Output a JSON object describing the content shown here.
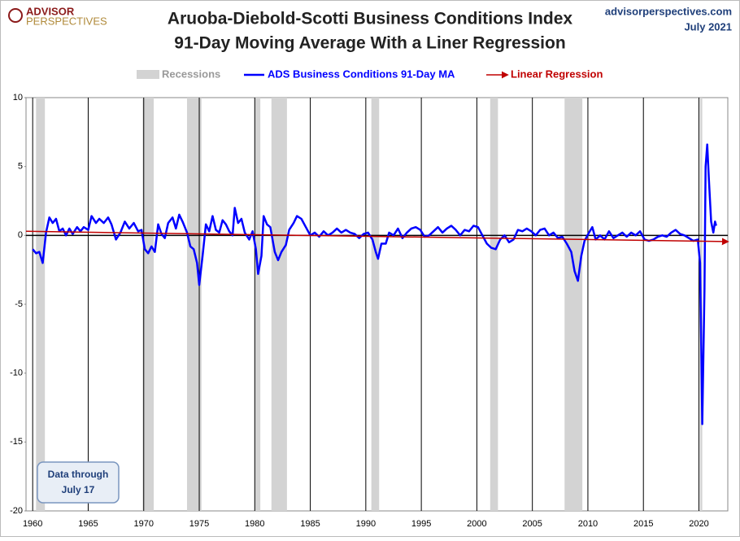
{
  "chart_data": {
    "type": "line",
    "title": [
      "Aruoba-Diebold-Scotti Business Conditions Index",
      "91-Day Moving Average With a Liner Regression"
    ],
    "source": "advisorperspectives.com",
    "date": "July 2021",
    "logo": [
      "ADVISOR",
      "PERSPECTIVES"
    ],
    "annotation": [
      "Data through",
      "July 17"
    ],
    "xlim": [
      1959.4,
      2022.6
    ],
    "xticks": [
      1960,
      1965,
      1970,
      1975,
      1980,
      1985,
      1990,
      1995,
      2000,
      2005,
      2010,
      2015,
      2020
    ],
    "ylim": [
      -20,
      10
    ],
    "yticks": [
      -20,
      -15,
      -10,
      -5,
      0,
      5,
      10
    ],
    "grid": true,
    "recessions": {
      "name": "Recessions",
      "color": "#d3d3d3",
      "spans": [
        [
          1960.3,
          1961.1
        ],
        [
          1969.9,
          1970.9
        ],
        [
          1973.9,
          1975.2
        ],
        [
          1980.0,
          1980.5
        ],
        [
          1981.5,
          1982.9
        ],
        [
          1990.5,
          1991.2
        ],
        [
          2001.2,
          2001.9
        ],
        [
          2007.9,
          2009.5
        ],
        [
          2020.1,
          2020.3
        ]
      ]
    },
    "series": [
      {
        "name": "ADS Business Conditions 91-Day MA",
        "color": "#0000ff",
        "x": [
          1960.0,
          1960.3,
          1960.6,
          1960.9,
          1961.2,
          1961.5,
          1961.8,
          1962.1,
          1962.4,
          1962.7,
          1963.0,
          1963.3,
          1963.6,
          1964.0,
          1964.3,
          1964.6,
          1965.0,
          1965.3,
          1965.7,
          1966.0,
          1966.4,
          1966.8,
          1967.1,
          1967.5,
          1967.9,
          1968.3,
          1968.7,
          1969.1,
          1969.5,
          1969.8,
          1970.1,
          1970.4,
          1970.7,
          1971.0,
          1971.3,
          1971.6,
          1971.9,
          1972.2,
          1972.6,
          1972.9,
          1973.2,
          1973.5,
          1973.9,
          1974.2,
          1974.5,
          1974.8,
          1975.0,
          1975.3,
          1975.6,
          1975.9,
          1976.2,
          1976.5,
          1976.8,
          1977.1,
          1977.4,
          1977.7,
          1978.0,
          1978.2,
          1978.5,
          1978.8,
          1979.1,
          1979.5,
          1979.8,
          1980.1,
          1980.3,
          1980.6,
          1980.8,
          1981.1,
          1981.4,
          1981.8,
          1982.1,
          1982.4,
          1982.8,
          1983.1,
          1983.5,
          1983.8,
          1984.2,
          1984.6,
          1985.0,
          1985.4,
          1985.8,
          1986.2,
          1986.6,
          1987.0,
          1987.4,
          1987.8,
          1988.2,
          1988.6,
          1989.0,
          1989.4,
          1989.8,
          1990.2,
          1990.6,
          1990.9,
          1991.1,
          1991.4,
          1991.8,
          1992.1,
          1992.5,
          1992.9,
          1993.3,
          1993.7,
          1994.1,
          1994.5,
          1994.9,
          1995.3,
          1995.7,
          1996.1,
          1996.5,
          1996.9,
          1997.3,
          1997.7,
          1998.1,
          1998.5,
          1998.9,
          1999.3,
          1999.7,
          2000.1,
          2000.5,
          2000.9,
          2001.3,
          2001.7,
          2002.1,
          2002.5,
          2002.9,
          2003.3,
          2003.7,
          2004.1,
          2004.5,
          2004.9,
          2005.3,
          2005.7,
          2006.1,
          2006.5,
          2006.9,
          2007.3,
          2007.7,
          2008.1,
          2008.5,
          2008.8,
          2009.1,
          2009.4,
          2009.7,
          2010.1,
          2010.4,
          2010.7,
          2011.1,
          2011.5,
          2011.9,
          2012.3,
          2012.7,
          2013.1,
          2013.5,
          2013.9,
          2014.3,
          2014.7,
          2015.1,
          2015.5,
          2015.9,
          2016.3,
          2016.7,
          2017.1,
          2017.5,
          2017.9,
          2018.3,
          2018.7,
          2019.1,
          2019.5,
          2019.9,
          2020.1,
          2020.3,
          2020.5,
          2020.6,
          2020.75,
          2020.9,
          2021.1,
          2021.3,
          2021.45,
          2021.55
        ],
        "values": [
          -1.0,
          -1.3,
          -1.2,
          -2.0,
          0.2,
          1.3,
          0.9,
          1.2,
          0.3,
          0.5,
          0.0,
          0.5,
          0.1,
          0.6,
          0.3,
          0.6,
          0.4,
          1.4,
          0.9,
          1.2,
          0.9,
          1.3,
          0.8,
          -0.3,
          0.2,
          1.0,
          0.5,
          0.9,
          0.3,
          0.4,
          -1.0,
          -1.3,
          -0.8,
          -1.2,
          0.8,
          0.1,
          -0.2,
          0.9,
          1.3,
          0.5,
          1.5,
          1.0,
          0.2,
          -0.8,
          -1.0,
          -2.0,
          -3.6,
          -1.5,
          0.8,
          0.3,
          1.4,
          0.4,
          0.2,
          1.1,
          0.8,
          0.3,
          0.0,
          2.0,
          0.9,
          1.2,
          0.2,
          -0.3,
          0.3,
          -1.0,
          -2.8,
          -1.5,
          1.4,
          0.8,
          0.6,
          -1.2,
          -1.8,
          -1.2,
          -0.7,
          0.4,
          0.9,
          1.4,
          1.2,
          0.6,
          0.0,
          0.2,
          -0.1,
          0.3,
          0.0,
          0.2,
          0.5,
          0.2,
          0.4,
          0.2,
          0.1,
          -0.2,
          0.1,
          0.2,
          -0.3,
          -1.2,
          -1.7,
          -0.6,
          -0.6,
          0.2,
          0.0,
          0.5,
          -0.2,
          0.2,
          0.5,
          0.6,
          0.4,
          -0.1,
          0.0,
          0.3,
          0.6,
          0.2,
          0.5,
          0.7,
          0.4,
          0.0,
          0.4,
          0.3,
          0.7,
          0.6,
          0.0,
          -0.6,
          -0.9,
          -1.0,
          -0.3,
          0.0,
          -0.5,
          -0.3,
          0.4,
          0.3,
          0.5,
          0.3,
          0.0,
          0.4,
          0.5,
          0.0,
          0.2,
          -0.2,
          -0.1,
          -0.6,
          -1.2,
          -2.6,
          -3.3,
          -1.5,
          -0.4,
          0.2,
          0.6,
          -0.3,
          0.0,
          -0.3,
          0.3,
          -0.2,
          0.0,
          0.2,
          -0.1,
          0.2,
          0.0,
          0.3,
          -0.3,
          -0.4,
          -0.3,
          -0.1,
          0.0,
          -0.1,
          0.2,
          0.4,
          0.1,
          0.0,
          -0.2,
          -0.4,
          -0.3,
          -2.0,
          -13.7,
          -4.0,
          5.0,
          6.6,
          4.0,
          1.0,
          0.2,
          1.0,
          0.7
        ]
      },
      {
        "name": "Linear Regression",
        "color": "#c00000",
        "x": [
          1959.4,
          2022.6
        ],
        "values": [
          0.3,
          -0.45
        ]
      }
    ]
  }
}
